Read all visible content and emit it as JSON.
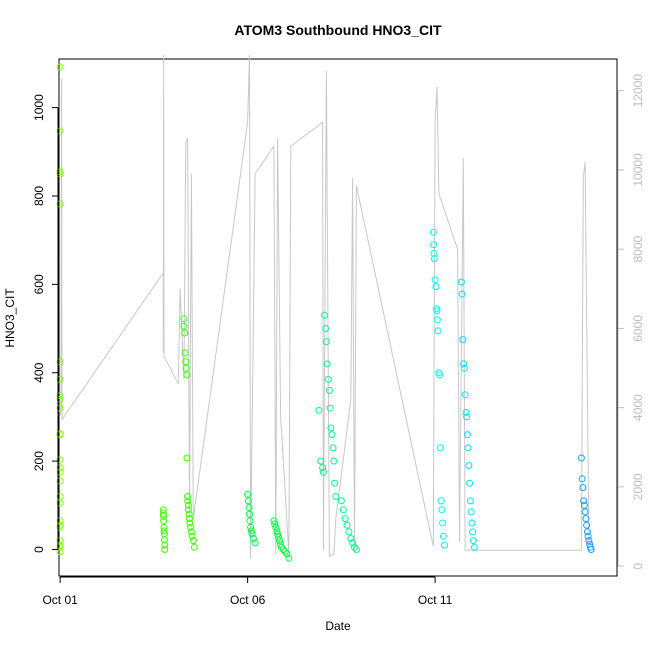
{
  "chart_data": {
    "type": "scatter",
    "title": "ATOM3 Southbound HNO3_CIT",
    "xlabel": "Date",
    "ylabel": "HNO3_CIT",
    "x_ticks": [
      {
        "day": 1,
        "label": "Oct 01"
      },
      {
        "day": 6,
        "label": "Oct 06"
      },
      {
        "day": 11,
        "label": "Oct 11"
      }
    ],
    "xlim": [
      0.97,
      15.85
    ],
    "ylim": [
      -60,
      1110
    ],
    "y_ticks": [
      0,
      200,
      400,
      600,
      800,
      1000
    ],
    "right_axis": {
      "ylim": [
        -250,
        12800
      ],
      "ticks": [
        0,
        2000,
        4000,
        6000,
        8000,
        10000,
        12000
      ],
      "color": "#bdbdbd"
    },
    "altitude_trace_color": "#c8c8c8",
    "altitude_trace": [
      [
        1.0,
        3800
      ],
      [
        1.02,
        3900
      ],
      [
        1.04,
        12300
      ],
      [
        1.05,
        3700
      ],
      [
        3.75,
        7400
      ],
      [
        3.75,
        5400
      ],
      [
        3.76,
        12900
      ],
      [
        3.77,
        5300
      ],
      [
        4.15,
        4600
      ],
      [
        4.2,
        7000
      ],
      [
        4.3,
        4700
      ],
      [
        4.35,
        10700
      ],
      [
        4.4,
        10800
      ],
      [
        4.45,
        1300
      ],
      [
        4.5,
        9900
      ],
      [
        4.55,
        1200
      ],
      [
        6.0,
        11200
      ],
      [
        6.05,
        12900
      ],
      [
        6.08,
        200
      ],
      [
        6.2,
        9900
      ],
      [
        6.7,
        10600
      ],
      [
        6.75,
        300
      ],
      [
        6.8,
        10800
      ],
      [
        6.88,
        3800
      ],
      [
        7.1,
        300
      ],
      [
        7.15,
        10600
      ],
      [
        8.0,
        11200
      ],
      [
        8.02,
        400
      ],
      [
        8.1,
        12500
      ],
      [
        8.18,
        250
      ],
      [
        8.3,
        300
      ],
      [
        8.35,
        1200
      ],
      [
        8.75,
        4200
      ],
      [
        8.8,
        9800
      ],
      [
        8.85,
        400
      ],
      [
        8.9,
        9600
      ],
      [
        10.95,
        500
      ],
      [
        11.0,
        11200
      ],
      [
        11.05,
        12100
      ],
      [
        11.1,
        9400
      ],
      [
        11.6,
        8000
      ],
      [
        11.65,
        600
      ],
      [
        11.75,
        10300
      ],
      [
        11.8,
        400
      ],
      [
        14.9,
        400
      ],
      [
        14.95,
        9800
      ],
      [
        15.0,
        10200
      ],
      [
        15.1,
        600
      ]
    ],
    "series": [
      {
        "name": "",
        "color": "#7fff00",
        "x": [
          1.0,
          1.0,
          1.0,
          1.0,
          1.0,
          1.0,
          1.0,
          1.0,
          1.0,
          1.0,
          1.0,
          1.0,
          1.0,
          1.0,
          1.0,
          1.0,
          1.0,
          1.0,
          1.0,
          1.0,
          1.0,
          1.0,
          1.0,
          1.0,
          1.0
        ],
        "y": [
          1092,
          947,
          855,
          850,
          782,
          425,
          385,
          348,
          340,
          320,
          262,
          260,
          203,
          185,
          175,
          155,
          120,
          105,
          65,
          55,
          50,
          20,
          10,
          5,
          -5
        ]
      },
      {
        "name": "",
        "color": "#3cff00",
        "x": [
          3.75,
          3.75,
          3.76,
          3.76,
          3.77,
          3.77,
          3.78,
          3.78,
          3.79,
          3.79,
          4.3,
          4.3,
          4.32,
          4.33,
          4.35,
          4.36,
          4.38,
          4.38,
          4.4,
          4.4,
          4.42,
          4.42,
          4.44,
          4.45,
          4.46,
          4.48,
          4.5,
          4.52,
          4.55,
          4.58
        ],
        "y": [
          90,
          82,
          75,
          65,
          50,
          42,
          35,
          22,
          10,
          0,
          522,
          505,
          490,
          445,
          425,
          410,
          395,
          207,
          120,
          110,
          100,
          90,
          80,
          70,
          60,
          50,
          40,
          30,
          20,
          5
        ]
      },
      {
        "name": "",
        "color": "#00ff40",
        "x": [
          6.0,
          6.02,
          6.04,
          6.05,
          6.06,
          6.08,
          6.1,
          6.12,
          6.15,
          6.2,
          6.7,
          6.72,
          6.75,
          6.78,
          6.8,
          6.82,
          6.85,
          6.88,
          6.9,
          6.95,
          7.0,
          7.05,
          7.1
        ],
        "y": [
          125,
          110,
          95,
          80,
          65,
          50,
          42,
          35,
          25,
          15,
          65,
          58,
          50,
          42,
          35,
          28,
          20,
          12,
          5,
          0,
          -5,
          -10,
          -20
        ]
      },
      {
        "name": "",
        "color": "#00ff8f",
        "x": [
          7.9,
          7.95,
          8.0,
          8.02,
          8.05,
          8.08,
          8.1,
          8.12,
          8.15,
          8.18,
          8.2,
          8.22,
          8.25,
          8.28,
          8.3,
          8.32,
          8.35,
          8.5,
          8.55,
          8.6,
          8.65,
          8.7,
          8.75,
          8.8,
          8.85,
          8.9
        ],
        "y": [
          315,
          200,
          185,
          175,
          530,
          500,
          470,
          420,
          385,
          360,
          320,
          275,
          260,
          230,
          200,
          150,
          120,
          110,
          90,
          70,
          55,
          40,
          25,
          15,
          5,
          0
        ]
      },
      {
        "name": "",
        "color": "#00fff0",
        "x": [
          10.95,
          10.96,
          10.97,
          10.98,
          11.0,
          11.02,
          11.04,
          11.05,
          11.06,
          11.08,
          11.1,
          11.12,
          11.14,
          11.16,
          11.18,
          11.2,
          11.22,
          11.25
        ],
        "y": [
          718,
          690,
          670,
          658,
          610,
          595,
          545,
          540,
          520,
          495,
          400,
          395,
          230,
          110,
          90,
          60,
          30,
          10
        ]
      },
      {
        "name": "",
        "color": "#00e5ff",
        "x": [
          11.7,
          11.72,
          11.74,
          11.76,
          11.78,
          11.8,
          11.82,
          11.84,
          11.86,
          11.88,
          11.9,
          11.92,
          11.94,
          11.96,
          11.98,
          12.0,
          12.02,
          12.05
        ],
        "y": [
          605,
          578,
          475,
          420,
          410,
          350,
          310,
          300,
          260,
          230,
          190,
          150,
          110,
          85,
          60,
          40,
          20,
          5
        ]
      },
      {
        "name": "",
        "color": "#1aa0ff",
        "x": [
          14.9,
          14.92,
          14.94,
          14.96,
          14.98,
          15.0,
          15.02,
          15.04,
          15.06,
          15.08,
          15.1,
          15.12,
          15.14,
          15.16
        ],
        "y": [
          207,
          160,
          140,
          110,
          100,
          85,
          70,
          55,
          40,
          30,
          20,
          12,
          5,
          0
        ]
      }
    ]
  }
}
